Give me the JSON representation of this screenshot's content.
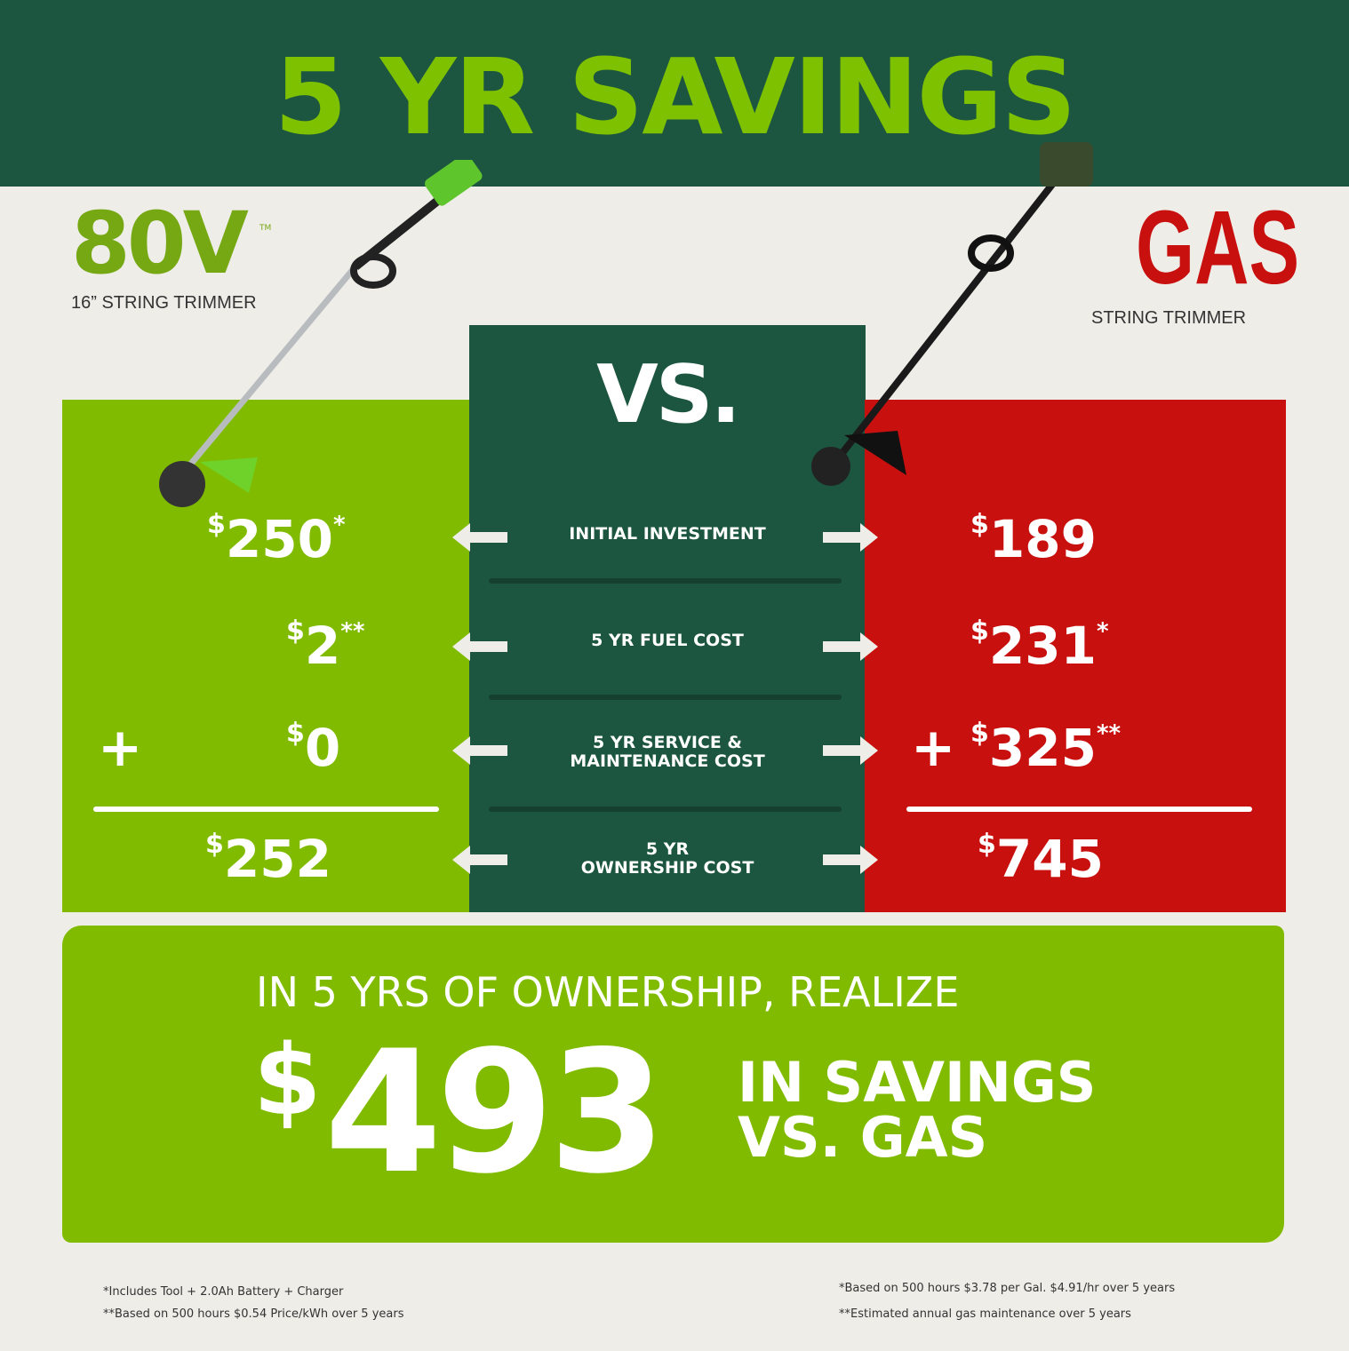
{
  "header": {
    "title": "5 YR SAVINGS"
  },
  "electric": {
    "logo": "80V",
    "trademark": "TM",
    "subtitle": "16” STRING TRIMMER"
  },
  "gas": {
    "logo": "GAS",
    "subtitle": "STRING TRIMMER"
  },
  "vs_label": "VS.",
  "rows": [
    {
      "label": "INITIAL INVESTMENT",
      "electric": {
        "currency": "$",
        "amount": "250",
        "mark": "*"
      },
      "gas": {
        "currency": "$",
        "amount": "189",
        "mark": ""
      }
    },
    {
      "label": "5 YR FUEL COST",
      "electric": {
        "currency": "$",
        "amount": "2",
        "mark": "**"
      },
      "gas": {
        "currency": "$",
        "amount": "231",
        "mark": "*"
      }
    },
    {
      "label_line1": "5 YR SERVICE &",
      "label_line2": "MAINTENANCE COST",
      "electric": {
        "prefix": "+",
        "currency": "$",
        "amount": "0",
        "mark": ""
      },
      "gas": {
        "prefix": "+",
        "currency": "$",
        "amount": "325",
        "mark": "**"
      }
    },
    {
      "label_line1": "5 YR",
      "label_line2": "OWNERSHIP COST",
      "electric": {
        "currency": "$",
        "amount": "252"
      },
      "gas": {
        "currency": "$",
        "amount": "745"
      }
    }
  ],
  "savings": {
    "line1": "IN 5 YRS OF OWNERSHIP, REALIZE",
    "currency": "$",
    "amount": "493",
    "line2": "IN SAVINGS",
    "line3": "VS. GAS"
  },
  "footnotes": {
    "electric": [
      "*Includes Tool + 2.0Ah Battery + Charger",
      "**Based on 500 hours $0.54 Price/kWh over 5 years"
    ],
    "gas": [
      "*Based on 500 hours $3.78 per Gal. $4.91/hr over 5 years",
      "**Estimated annual gas maintenance over 5 years"
    ]
  },
  "colors": {
    "dark_green": "#1c5640",
    "lime": "#80bb00",
    "red": "#c8100f",
    "background": "#eeede8"
  }
}
